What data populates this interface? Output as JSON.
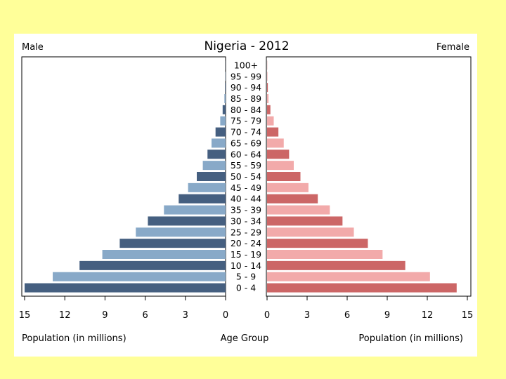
{
  "chart_data": {
    "type": "bar",
    "title": "Nigeria - 2012",
    "left_label": "Male",
    "right_label": "Female",
    "xlabel_left": "Population (in millions)",
    "xlabel_center": "Age Group",
    "xlabel_right": "Population (in millions)",
    "xlim": [
      0,
      15
    ],
    "ticks": [
      0,
      3,
      6,
      9,
      12,
      15
    ],
    "tick_labels_left": [
      "15",
      "12",
      "9",
      "6",
      "3",
      "0"
    ],
    "tick_labels_right": [
      "0",
      "3",
      "6",
      "9",
      "12",
      "15"
    ],
    "categories": [
      "100+",
      "95 - 99",
      "90 - 94",
      "85 - 89",
      "80 - 84",
      "75 - 79",
      "70 - 74",
      "65 - 69",
      "60 - 64",
      "55 - 59",
      "50 - 54",
      "45 - 49",
      "40 - 44",
      "35 - 39",
      "30 - 34",
      "25 - 29",
      "20 - 24",
      "15 - 19",
      "10 - 14",
      "5 - 9",
      "0 - 4"
    ],
    "series": [
      {
        "name": "Male",
        "values": [
          0.01,
          0.02,
          0.04,
          0.09,
          0.22,
          0.4,
          0.75,
          1.05,
          1.35,
          1.7,
          2.15,
          2.8,
          3.5,
          4.6,
          5.8,
          6.7,
          7.9,
          9.2,
          10.9,
          12.9,
          15.0
        ]
      },
      {
        "name": "Female",
        "values": [
          0.01,
          0.03,
          0.06,
          0.11,
          0.25,
          0.5,
          0.85,
          1.25,
          1.65,
          2.0,
          2.5,
          3.1,
          3.8,
          4.7,
          5.65,
          6.5,
          7.55,
          8.65,
          10.35,
          12.2,
          14.2
        ]
      }
    ],
    "colors": {
      "male_dark": "#455f80",
      "male_light": "#88a9c8",
      "female_dark": "#cc6666",
      "female_light": "#f2aaaa"
    }
  }
}
